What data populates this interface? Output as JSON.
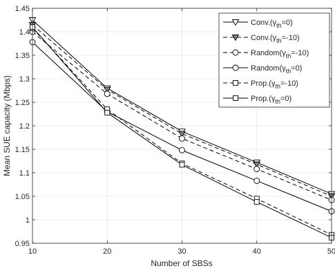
{
  "chart_data": {
    "type": "line",
    "xlabel": "Number of SBSs",
    "ylabel": "Mean SUE capacity (Mbps)",
    "x": [
      10,
      20,
      30,
      40,
      50
    ],
    "xlim": [
      10,
      50
    ],
    "ylim": [
      0.95,
      1.45
    ],
    "xticks": [
      10,
      20,
      30,
      40,
      50
    ],
    "xtick_labels": [
      "10",
      "20",
      "30",
      "40",
      "50"
    ],
    "yticks": [
      0.95,
      1.0,
      1.05,
      1.1,
      1.15,
      1.2,
      1.25,
      1.3,
      1.35,
      1.4,
      1.45
    ],
    "ytick_labels": [
      "0.95",
      "1",
      "1.05",
      "1.1",
      "1.15",
      "1.2",
      "1.25",
      "1.3",
      "1.35",
      "1.4",
      "1.45"
    ],
    "grid": true,
    "legend_position": "top-right",
    "series": [
      {
        "name": "Conv.(γth=0)",
        "legend_label": "Conv.(",
        "legend_sub": "th",
        "legend_tail": "=0)",
        "values": [
          1.425,
          1.28,
          1.188,
          1.122,
          1.055
        ],
        "marker": "triangle-down",
        "line": "solid",
        "filled": false
      },
      {
        "name": "Conv.(γth=-10)",
        "legend_label": "Conv.(",
        "legend_sub": "th",
        "legend_tail": "=-10)",
        "values": [
          1.415,
          1.277,
          1.183,
          1.118,
          1.05
        ],
        "marker": "triangle-down",
        "line": "dashed",
        "filled": true
      },
      {
        "name": "Random(γth=-10)",
        "legend_label": "Random(",
        "legend_sub": "th",
        "legend_tail": "=-10)",
        "values": [
          1.4,
          1.268,
          1.173,
          1.108,
          1.042
        ],
        "marker": "circle",
        "line": "dashed",
        "filled": false
      },
      {
        "name": "Random(γth=0)",
        "legend_label": "Random(",
        "legend_sub": "th",
        "legend_tail": "=0)",
        "values": [
          1.378,
          1.23,
          1.148,
          1.083,
          1.018
        ],
        "marker": "circle",
        "line": "solid",
        "filled": false
      },
      {
        "name": "Prop.(γth=-10)",
        "legend_label": "Prop.(",
        "legend_sub": "th",
        "legend_tail": "=-10)",
        "values": [
          1.408,
          1.235,
          1.12,
          1.045,
          0.968
        ],
        "marker": "square",
        "line": "dashed",
        "filled": false
      },
      {
        "name": "Prop.(γth=0)",
        "legend_label": "Prop.(",
        "legend_sub": "th",
        "legend_tail": "=0)",
        "values": [
          1.41,
          1.228,
          1.117,
          1.038,
          0.962
        ],
        "marker": "square",
        "line": "solid",
        "filled": false
      }
    ],
    "colors": {
      "line": "#000000",
      "grid": "#e6e6e6",
      "axis": "#262626",
      "background": "#ffffff"
    }
  }
}
